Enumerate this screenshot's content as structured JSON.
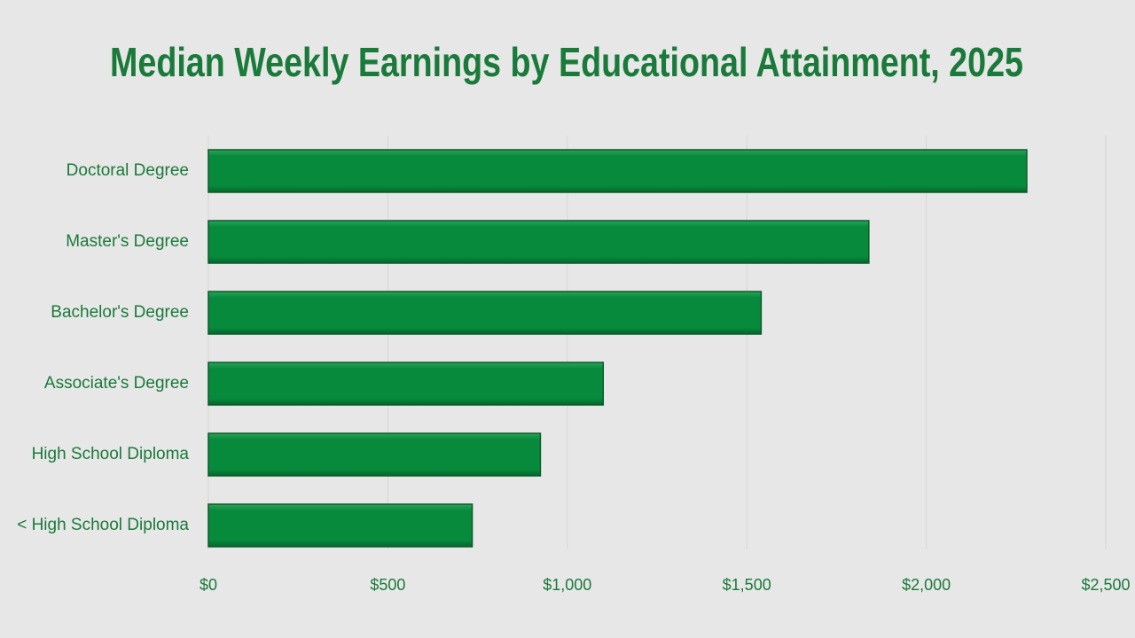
{
  "chart_data": {
    "type": "bar",
    "orientation": "horizontal",
    "title": "Median Weekly Earnings by Educational Attainment, 2025",
    "categories": [
      "Doctoral Degree",
      "Master's Degree",
      "Bachelor's Degree",
      "Associate's Degree",
      "High School Diploma",
      "< High School Diploma"
    ],
    "values": [
      2280,
      1840,
      1540,
      1100,
      925,
      735
    ],
    "color": "#078a3c",
    "xlim": [
      0,
      2500
    ],
    "xticks": [
      {
        "value": 0,
        "label": "$0"
      },
      {
        "value": 500,
        "label": "$500"
      },
      {
        "value": 1000,
        "label": "$1,000"
      },
      {
        "value": 1500,
        "label": "$1,500"
      },
      {
        "value": 2000,
        "label": "$2,000"
      },
      {
        "value": 2500,
        "label": "$2,500"
      }
    ],
    "grid": true
  }
}
